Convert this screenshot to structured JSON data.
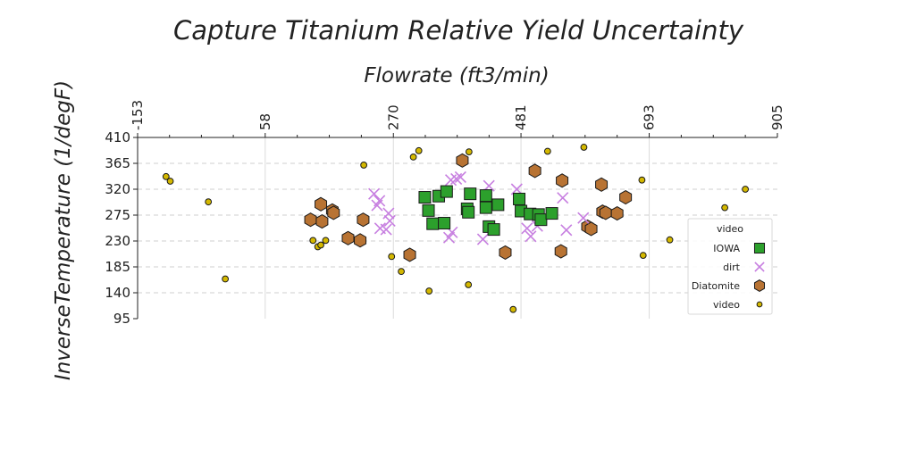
{
  "chart_data": {
    "type": "scatter",
    "title": "Capture Titanium Relative Yield Uncertainty",
    "xlabel": "Flowrate (ft3/min)",
    "ylabel": "InverseTemperature (1/degF)",
    "x_axis_position": "top",
    "xlim": [
      -153,
      905
    ],
    "ylim": [
      95,
      410
    ],
    "xticks": [
      "-153",
      "58",
      "270",
      "481",
      "693",
      "905"
    ],
    "yticks": [
      "95",
      "140",
      "185",
      "230",
      "275",
      "320",
      "365",
      "410"
    ],
    "grid": true,
    "legend": {
      "placement": "right",
      "title": "video",
      "entries": [
        "IOWA",
        "dirt",
        "Diatomite",
        "video"
      ]
    },
    "series": [
      {
        "name": "IOWA",
        "marker": "square",
        "color": "#2ca02c",
        "points": [
          [
            322,
            306
          ],
          [
            328,
            283
          ],
          [
            335,
            260
          ],
          [
            345,
            308
          ],
          [
            354,
            261
          ],
          [
            358,
            316
          ],
          [
            397,
            312
          ],
          [
            392,
            286
          ],
          [
            394,
            280
          ],
          [
            423,
            288
          ],
          [
            423,
            309
          ],
          [
            443,
            293
          ],
          [
            428,
            255
          ],
          [
            436,
            250
          ],
          [
            478,
            303
          ],
          [
            481,
            282
          ],
          [
            496,
            277
          ],
          [
            510,
            276
          ],
          [
            514,
            267
          ],
          [
            532,
            278
          ]
        ]
      },
      {
        "name": "dirt",
        "marker": "x",
        "color": "#c77fe0",
        "points": [
          [
            238,
            312
          ],
          [
            243,
            292
          ],
          [
            247,
            300
          ],
          [
            248,
            252
          ],
          [
            258,
            250
          ],
          [
            262,
            278
          ],
          [
            264,
            265
          ],
          [
            362,
            236
          ],
          [
            365,
            336
          ],
          [
            367,
            245
          ],
          [
            374,
            338
          ],
          [
            381,
            341
          ],
          [
            418,
            233
          ],
          [
            428,
            326
          ],
          [
            474,
            320
          ],
          [
            491,
            252
          ],
          [
            497,
            238
          ],
          [
            508,
            256
          ],
          [
            550,
            305
          ],
          [
            556,
            249
          ],
          [
            584,
            270
          ]
        ]
      },
      {
        "name": "Diatomite",
        "marker": "hexagon",
        "color": "#b87333",
        "points": [
          [
            133,
            267
          ],
          [
            150,
            294
          ],
          [
            152,
            264
          ],
          [
            169,
            283
          ],
          [
            171,
            279
          ],
          [
            195,
            235
          ],
          [
            215,
            231
          ],
          [
            220,
            267
          ],
          [
            297,
            206
          ],
          [
            384,
            370
          ],
          [
            455,
            210
          ],
          [
            504,
            352
          ],
          [
            547,
            212
          ],
          [
            549,
            335
          ],
          [
            591,
            255
          ],
          [
            597,
            251
          ],
          [
            614,
            328
          ],
          [
            616,
            281
          ],
          [
            621,
            279
          ],
          [
            640,
            278
          ],
          [
            654,
            306
          ]
        ]
      },
      {
        "name": "video",
        "marker": "circle",
        "color": "#d4b800",
        "points": [
          [
            -106,
            342
          ],
          [
            -99,
            334
          ],
          [
            -36,
            298
          ],
          [
            -8,
            164
          ],
          [
            137,
            231
          ],
          [
            145,
            220
          ],
          [
            150,
            223
          ],
          [
            158,
            231
          ],
          [
            221,
            362
          ],
          [
            267,
            203
          ],
          [
            283,
            177
          ],
          [
            303,
            376
          ],
          [
            312,
            387
          ],
          [
            329,
            143
          ],
          [
            394,
            154
          ],
          [
            395,
            385
          ],
          [
            468,
            111
          ],
          [
            525,
            386
          ],
          [
            585,
            393
          ],
          [
            681,
            336
          ],
          [
            683,
            205
          ],
          [
            727,
            232
          ],
          [
            818,
            288
          ],
          [
            852,
            320
          ]
        ]
      }
    ]
  }
}
